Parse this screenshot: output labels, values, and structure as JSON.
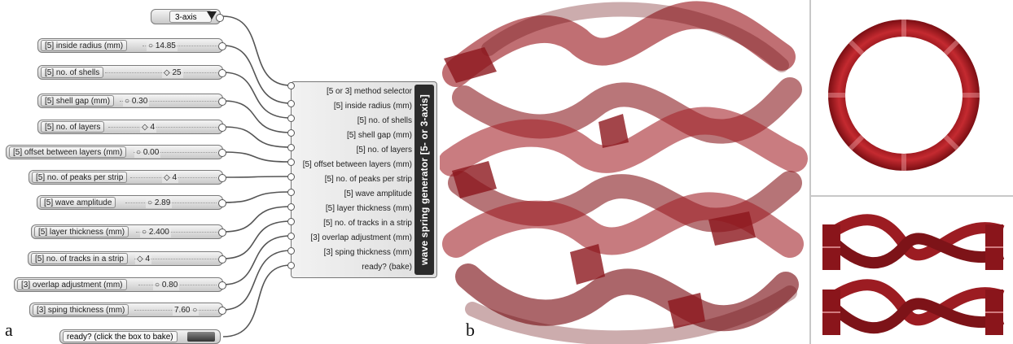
{
  "method_selector": {
    "value": "3-axis"
  },
  "sliders": [
    {
      "label": "[5] inside radius (mm)",
      "value": "14.85"
    },
    {
      "label": "[5] no. of shells",
      "value": "25"
    },
    {
      "label": "[5] shell gap (mm)",
      "value": "0.30"
    },
    {
      "label": "[5] no. of layers",
      "value": "4"
    },
    {
      "label": "[5] offset between layers (mm)",
      "value": "0.00"
    },
    {
      "label": "[5] no. of peaks per strip",
      "value": "4"
    },
    {
      "label": "[5] wave amplitude",
      "value": "2.89"
    },
    {
      "label": "[5] layer thickness (mm)",
      "value": "2.400"
    },
    {
      "label": "[5] no. of tracks in a strip",
      "value": "4"
    },
    {
      "label": "[3] overlap adjustment (mm)",
      "value": "0.80"
    },
    {
      "label": "[3] sping thickness (mm)",
      "value": "7.60"
    }
  ],
  "toggle": {
    "label": "ready? (click the box to bake)"
  },
  "component": {
    "title": "wave spring generator [5- or 3-axis]",
    "inputs": [
      "[5 or 3] method selector",
      "[5] inside radius (mm)",
      "[5] no. of shells",
      "[5] shell gap (mm)",
      "[5] no. of layers",
      "[5] offset between layers (mm)",
      "[5] no. of peaks per strip",
      "[5] wave amplitude",
      "[5] layer thickness (mm)",
      "[5] no. of tracks in a strip",
      "[3] overlap adjustment (mm)",
      "[3] sping thickness (mm)",
      "ready? (bake)"
    ]
  },
  "panel_labels": {
    "a": "a",
    "b": "b"
  },
  "colors": {
    "spring": "#a11d24",
    "spring_dark": "#6e1014",
    "wire": "#555555"
  }
}
